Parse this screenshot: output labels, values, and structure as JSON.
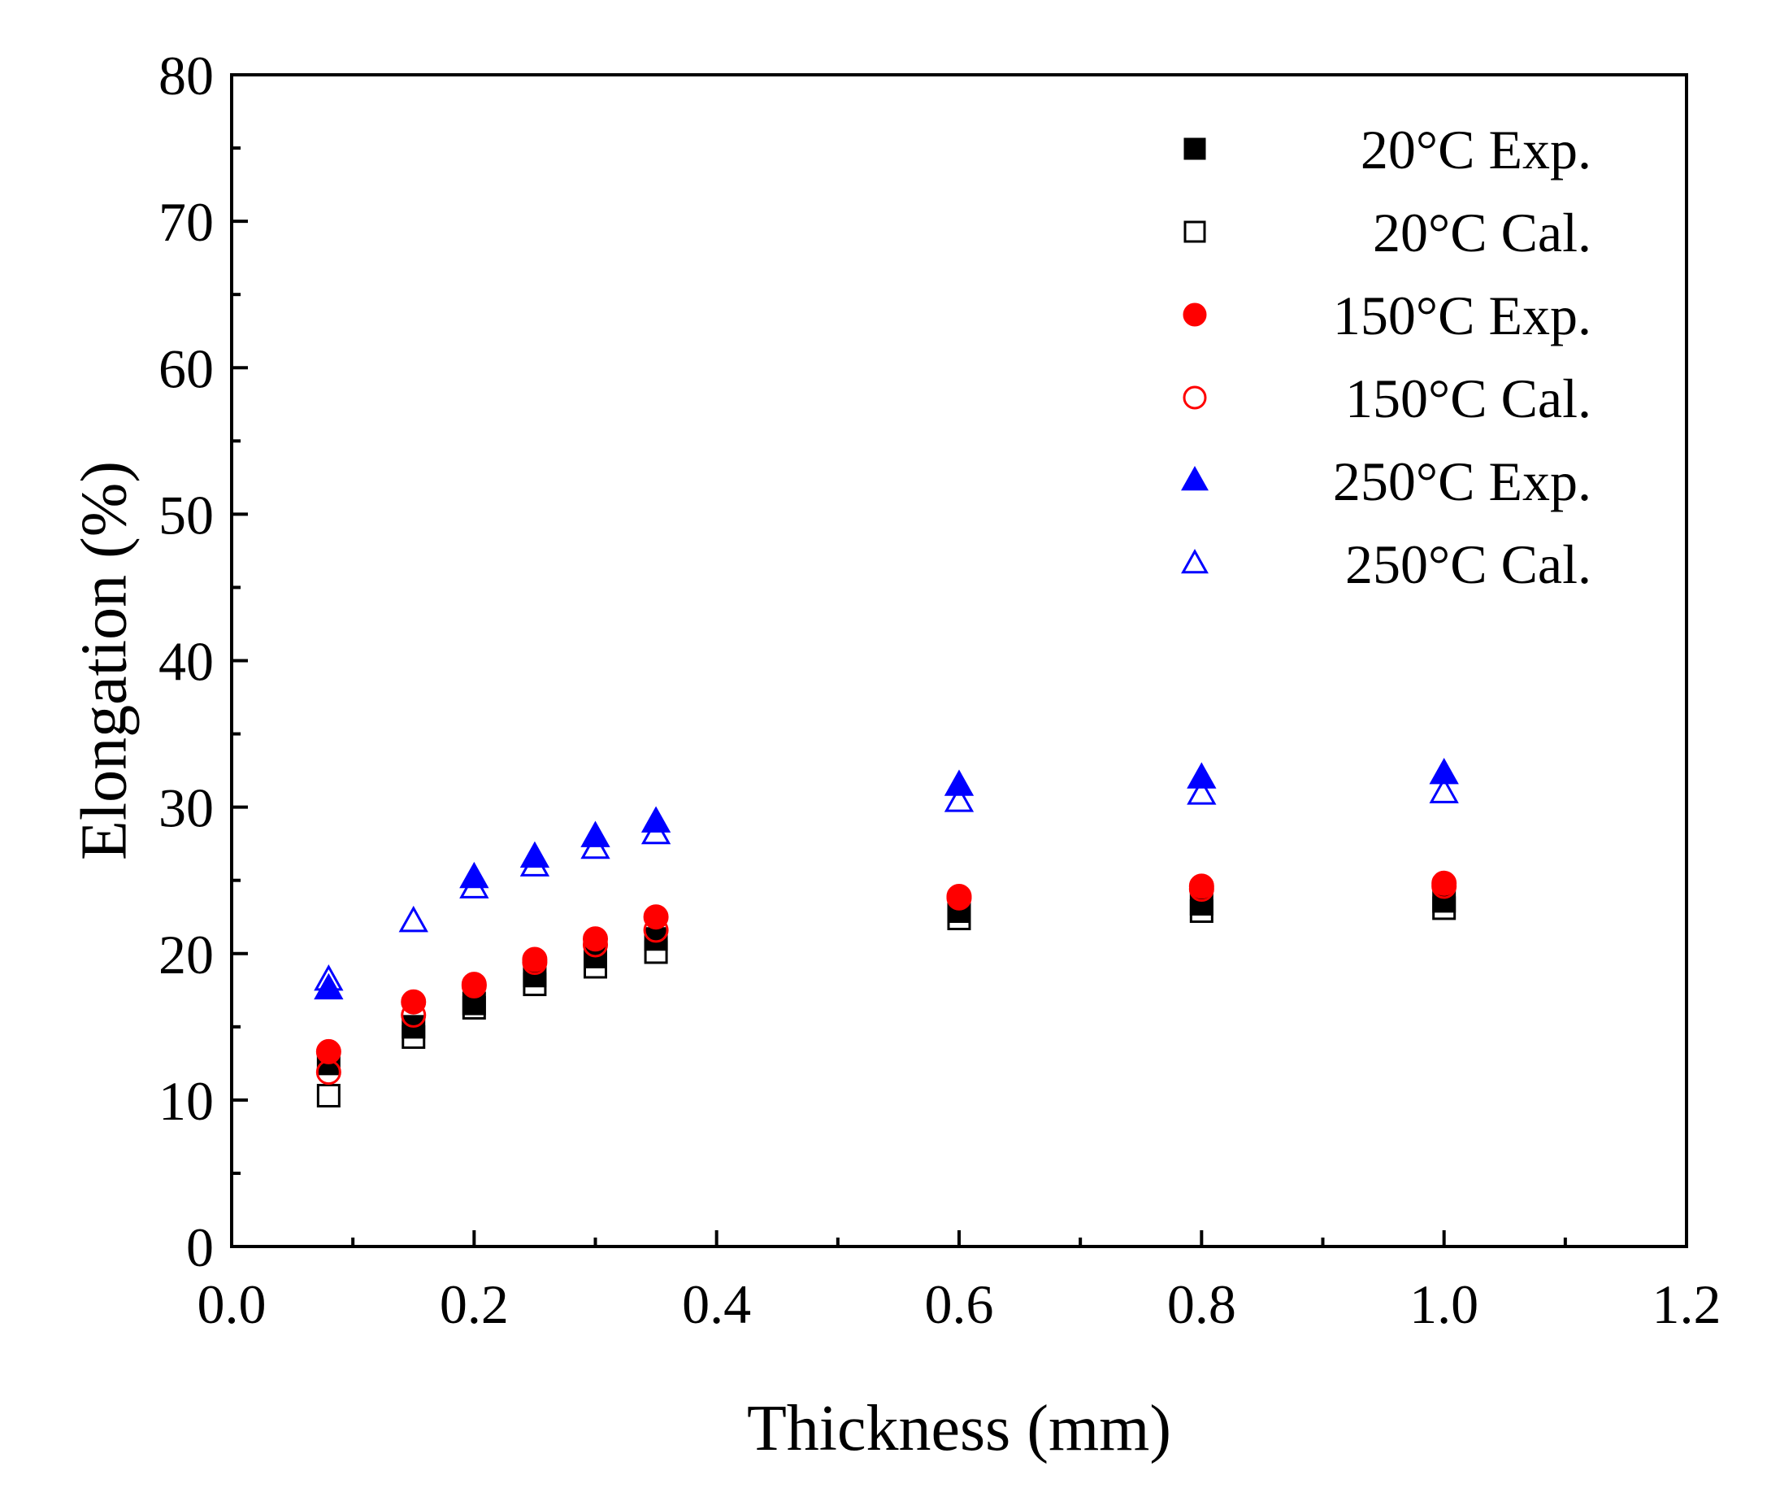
{
  "chart_data": {
    "type": "scatter",
    "title": "",
    "xlabel": "Thickness (mm)",
    "ylabel": "Elongation (%)",
    "xlim": [
      0.0,
      1.2
    ],
    "ylim": [
      0,
      80
    ],
    "xticks": [
      "0.0",
      "0.2",
      "0.4",
      "0.6",
      "0.8",
      "1.0",
      "1.2"
    ],
    "yticks": [
      "0",
      "10",
      "20",
      "30",
      "40",
      "50",
      "60",
      "70",
      "80"
    ],
    "grid": false,
    "legend_position": "top-right",
    "series": [
      {
        "name": "20°C Exp.",
        "marker": "square",
        "filled": true,
        "color": "#000000",
        "x": [
          0.08,
          0.15,
          0.2,
          0.25,
          0.3,
          0.35,
          0.6,
          0.8,
          1.0
        ],
        "y": [
          12.5,
          15.0,
          16.6,
          18.5,
          19.8,
          21.0,
          22.9,
          23.4,
          23.6
        ]
      },
      {
        "name": "20°C Cal.",
        "marker": "square",
        "filled": false,
        "color": "#000000",
        "x": [
          0.08,
          0.15,
          0.2,
          0.25,
          0.3,
          0.35,
          0.6,
          0.8,
          1.0
        ],
        "y": [
          10.3,
          14.3,
          16.3,
          17.9,
          19.1,
          20.1,
          22.4,
          22.9,
          23.1
        ]
      },
      {
        "name": "150°C Exp.",
        "marker": "circle",
        "filled": true,
        "color": "#ff0000",
        "x": [
          0.08,
          0.15,
          0.2,
          0.25,
          0.3,
          0.35,
          0.6,
          0.8,
          1.0
        ],
        "y": [
          13.3,
          16.7,
          17.8,
          19.6,
          21.0,
          22.5,
          23.9,
          24.6,
          24.8
        ]
      },
      {
        "name": "150°C Cal.",
        "marker": "circle",
        "filled": false,
        "color": "#ff0000",
        "x": [
          0.08,
          0.15,
          0.2,
          0.25,
          0.3,
          0.35,
          0.6,
          0.8,
          1.0
        ],
        "y": [
          11.9,
          15.8,
          17.9,
          19.4,
          20.6,
          21.6,
          23.8,
          24.4,
          24.6
        ]
      },
      {
        "name": "250°C Exp.",
        "marker": "triangle",
        "filled": true,
        "color": "#0000ff",
        "x": [
          0.08,
          0.2,
          0.25,
          0.3,
          0.35,
          0.6,
          0.8,
          1.0
        ],
        "y": [
          17.6,
          25.2,
          26.6,
          28.0,
          29.0,
          31.5,
          32.0,
          32.3
        ]
      },
      {
        "name": "250°C Cal.",
        "marker": "triangle",
        "filled": false,
        "color": "#0000ff",
        "x": [
          0.08,
          0.15,
          0.2,
          0.25,
          0.3,
          0.35,
          0.6,
          0.8,
          1.0
        ],
        "y": [
          18.2,
          22.2,
          24.5,
          26.0,
          27.2,
          28.2,
          30.4,
          30.9,
          31.0
        ]
      }
    ]
  }
}
